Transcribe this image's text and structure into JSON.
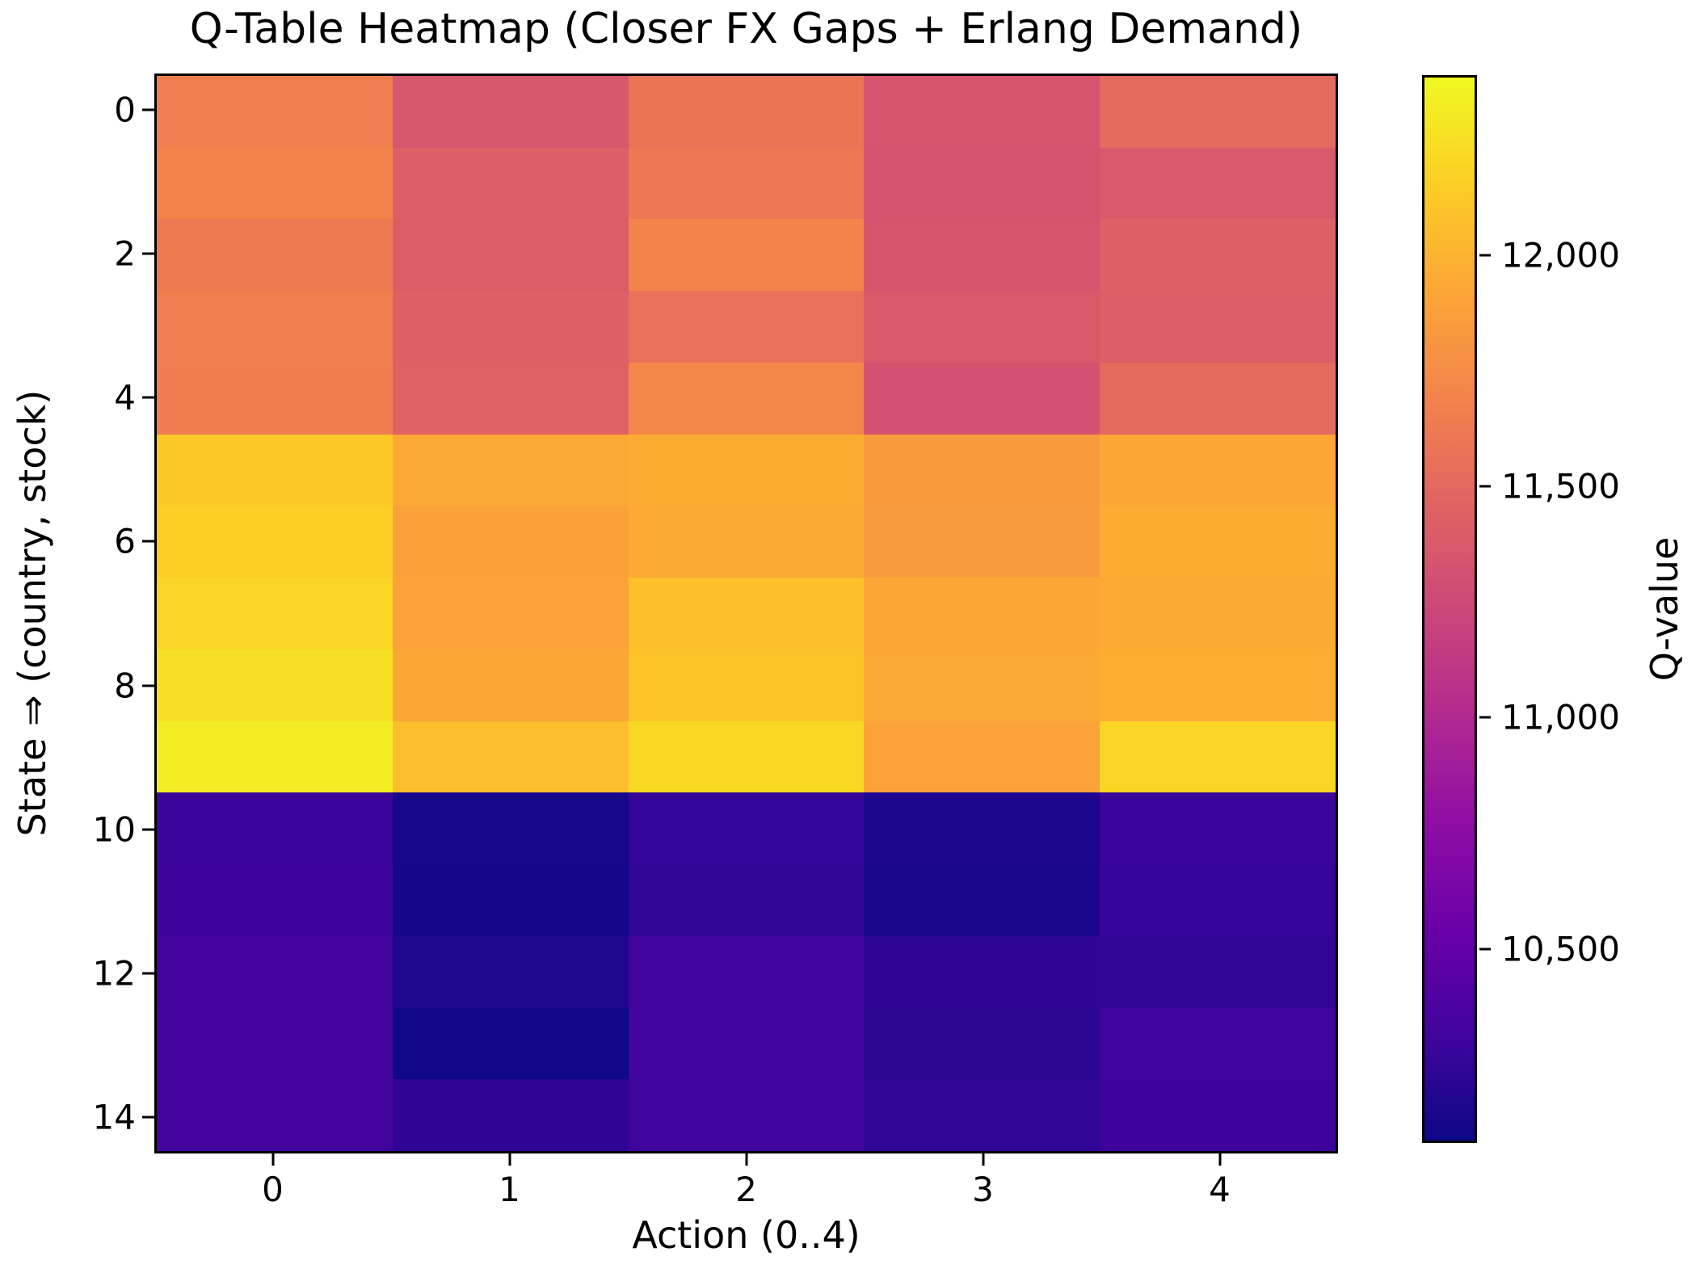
{
  "title": "Q-Table Heatmap (Closer FX Gaps + Erlang Demand)",
  "xlabel": "Action (0..4)",
  "ylabel": "State ⇒ (country, stock)",
  "x_tick_labels": [
    "0",
    "1",
    "2",
    "3",
    "4"
  ],
  "y_tick_labels": [
    "0",
    "2",
    "4",
    "6",
    "8",
    "10",
    "12",
    "14"
  ],
  "colorbar": {
    "label": "Q-value",
    "tick_labels": [
      "12,000",
      "11,500",
      "11,000",
      "10,500"
    ],
    "tick_values": [
      12000,
      11500,
      11000,
      10500
    ]
  },
  "chart_data": {
    "type": "heatmap",
    "title": "Q-Table Heatmap (Closer FX Gaps + Erlang Demand)",
    "xlabel": "Action (0..4)",
    "ylabel": "State ⇒ (country, stock)",
    "colorbar_label": "Q-value",
    "colormap": "plasma",
    "grid": false,
    "vmin": 10080,
    "vmax": 12390,
    "rows": 15,
    "cols": 5,
    "x": [
      0,
      1,
      2,
      3,
      4
    ],
    "y": [
      0,
      1,
      2,
      3,
      4,
      5,
      6,
      7,
      8,
      9,
      10,
      11,
      12,
      13,
      14
    ],
    "values": [
      [
        11660,
        11360,
        11590,
        11340,
        11510
      ],
      [
        11700,
        11420,
        11610,
        11330,
        11375
      ],
      [
        11630,
        11410,
        11700,
        11350,
        11430
      ],
      [
        11660,
        11430,
        11570,
        11375,
        11420
      ],
      [
        11650,
        11445,
        11720,
        11325,
        11510
      ],
      [
        12125,
        11940,
        11965,
        11850,
        11930
      ],
      [
        12160,
        11895,
        11950,
        11845,
        11965
      ],
      [
        12195,
        11905,
        12080,
        11930,
        11950
      ],
      [
        12250,
        11930,
        12100,
        11940,
        11975
      ],
      [
        12320,
        12065,
        12215,
        11905,
        12195
      ],
      [
        10275,
        10125,
        10255,
        10150,
        10275
      ],
      [
        10290,
        10115,
        10240,
        10140,
        10265
      ],
      [
        10325,
        10160,
        10310,
        10230,
        10240
      ],
      [
        10330,
        10090,
        10310,
        10220,
        10300
      ],
      [
        10320,
        10230,
        10300,
        10240,
        10290
      ]
    ]
  }
}
